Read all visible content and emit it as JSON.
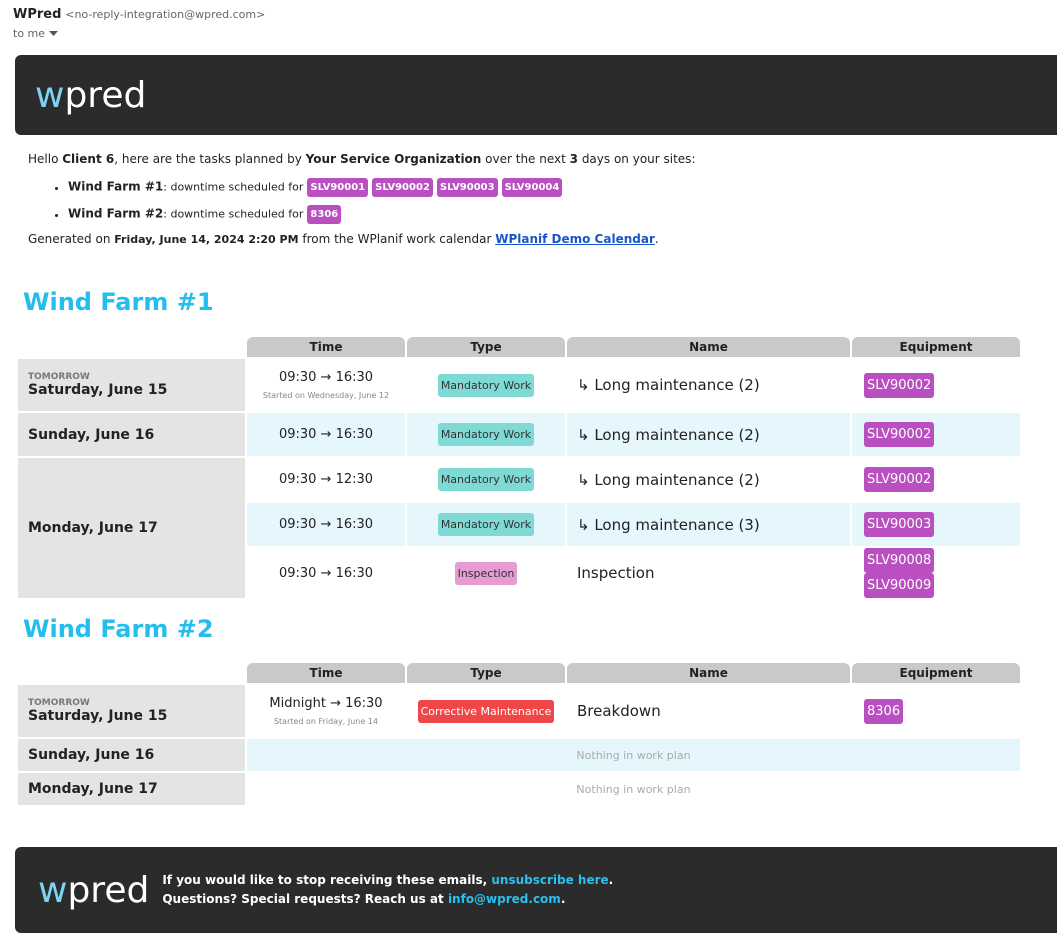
{
  "email": {
    "sender_name": "WPred",
    "sender_address": "<no-reply-integration@wpred.com>",
    "to": "to me"
  },
  "header": {
    "logo": [
      "w",
      "pred"
    ]
  },
  "intro": [
    "Hello ",
    "Client 6",
    ", here are the tasks planned by ",
    "Your Service Organization",
    " over the next ",
    "3",
    " days on your sites:"
  ],
  "summary": [
    {
      "site": "Wind Farm #1",
      "text": ": downtime scheduled for",
      "tags": [
        "SLV90001",
        "SLV90002",
        "SLV90003",
        "SLV90004"
      ]
    },
    {
      "site": "Wind Farm #2",
      "text": ": downtime scheduled for",
      "tags": [
        "8306"
      ]
    }
  ],
  "generated": [
    "Generated on ",
    "Friday, June 14, 2024 2:20 PM",
    " from the WPlanif work calendar ",
    "WPlanif Demo Calendar",
    "."
  ],
  "sites": [
    {
      "title": "Wind Farm #1",
      "headers": [
        "Time",
        "Type",
        "Name",
        "Equipment"
      ],
      "days": [
        {
          "label": "TOMORROW",
          "date": "Saturday, June 15",
          "rows": [
            {
              "time": "09:30 → 16:30",
              "note": "Started on Wednesday, June 12",
              "type": "Mandatory Work",
              "type_color": "#7fdad5",
              "name": "↳ Long maintenance (2)",
              "equipment": [
                "SLV90002"
              ]
            }
          ]
        },
        {
          "date": "Sunday, June 16",
          "rows": [
            {
              "time": "09:30 → 16:30",
              "type": "Mandatory Work",
              "type_color": "#7fdad5",
              "name": "↳ Long maintenance (2)",
              "equipment": [
                "SLV90002"
              ]
            }
          ]
        },
        {
          "date": "Monday, June 17",
          "rows": [
            {
              "time": "09:30 → 12:30",
              "type": "Mandatory Work",
              "type_color": "#7fdad5",
              "name": "↳ Long maintenance (2)",
              "equipment": [
                "SLV90002"
              ]
            },
            {
              "time": "09:30 → 16:30",
              "type": "Mandatory Work",
              "type_color": "#7fdad5",
              "name": "↳ Long maintenance (3)",
              "equipment": [
                "SLV90003"
              ]
            },
            {
              "time": "09:30 → 16:30",
              "type": "Inspection",
              "type_color": "#e69bd2",
              "name": "Inspection",
              "equipment": [
                "SLV90008",
                "SLV90009"
              ]
            }
          ]
        }
      ]
    },
    {
      "title": "Wind Farm #2",
      "headers": [
        "Time",
        "Type",
        "Name",
        "Equipment"
      ],
      "days": [
        {
          "label": "TOMORROW",
          "date": "Saturday, June 15",
          "rows": [
            {
              "time": "Midnight → 16:30",
              "note": "Started on Friday, June 14",
              "type": "Corrective Maintenance",
              "type_color": "#ef4747",
              "name": "Breakdown",
              "equipment": [
                "8306"
              ]
            }
          ]
        },
        {
          "date": "Sunday, June 16",
          "empty": "Nothing in work plan"
        },
        {
          "date": "Monday, June 17",
          "empty": "Nothing in work plan"
        }
      ]
    }
  ],
  "footer": {
    "logo": [
      "w",
      "pred"
    ],
    "lines": [
      [
        "If you would like to stop receiving these emails, ",
        "unsubscribe here",
        "."
      ],
      [
        "Questions? Special requests? Reach us at ",
        "info@wpred.com",
        "."
      ]
    ]
  }
}
